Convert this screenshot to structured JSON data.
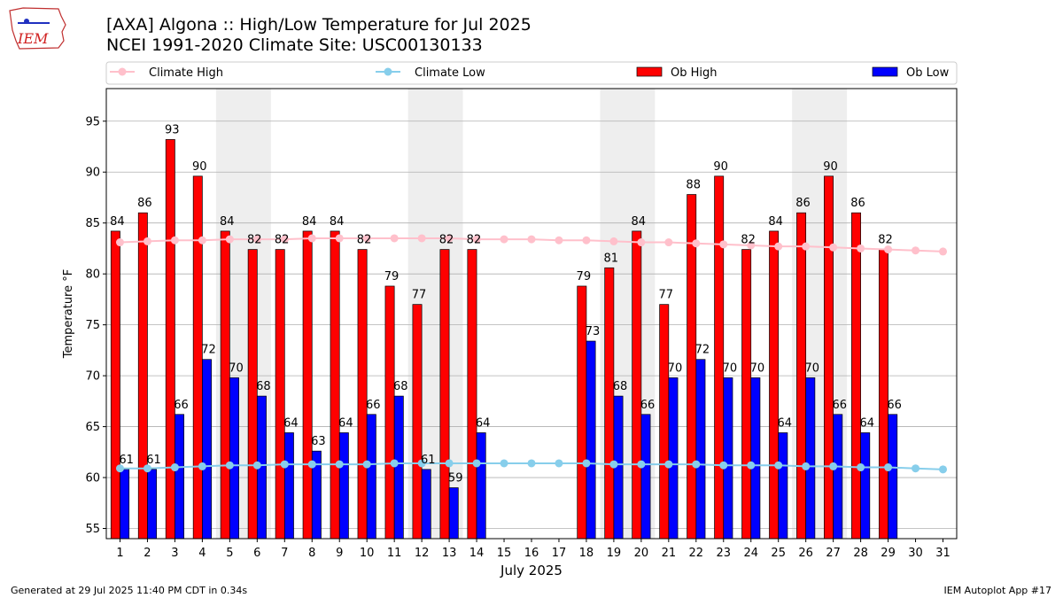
{
  "header": {
    "title_line1": "[AXA] Algona :: High/Low Temperature for Jul 2025",
    "title_line2": "NCEI 1991-2020 Climate Site: USC00130133",
    "logo_text": "IEM"
  },
  "footer": {
    "left": "Generated at 29 Jul 2025 11:40 PM CDT in 0.34s",
    "right": "IEM Autoplot App #17"
  },
  "colors": {
    "ob_high": "#ff0000",
    "ob_low": "#0000ff",
    "climate_high": "#ffc0cb",
    "climate_low": "#87ceeb",
    "weekend_shade": "#eeeeee",
    "grid": "#b0b0b0"
  },
  "chart_data": {
    "type": "bar",
    "title": "[AXA] Algona :: High/Low Temperature for Jul 2025",
    "subtitle": "NCEI 1991-2020 Climate Site: USC00130133",
    "xlabel": "July 2025",
    "ylabel": "Temperature °F",
    "ylim": [
      54,
      98.2
    ],
    "yticks": [
      55,
      60,
      65,
      70,
      75,
      80,
      85,
      90,
      95
    ],
    "xlim": [
      0.5,
      31.5
    ],
    "grid": "horizontal",
    "legend_position": "top",
    "categories": [
      "1",
      "2",
      "3",
      "4",
      "5",
      "6",
      "7",
      "8",
      "9",
      "10",
      "11",
      "12",
      "13",
      "14",
      "15",
      "16",
      "17",
      "18",
      "19",
      "20",
      "21",
      "22",
      "23",
      "24",
      "25",
      "26",
      "27",
      "28",
      "29",
      "30",
      "31"
    ],
    "weekend_spans": [
      [
        5,
        6
      ],
      [
        12,
        13
      ],
      [
        19,
        20
      ],
      [
        26,
        27
      ]
    ],
    "series": [
      {
        "name": "Ob High",
        "kind": "bar",
        "values": [
          84,
          86,
          93,
          90,
          84,
          82,
          82,
          84,
          84,
          82,
          79,
          77,
          82,
          82,
          null,
          null,
          null,
          79,
          81,
          84,
          77,
          88,
          90,
          82,
          84,
          86,
          90,
          86,
          82,
          null,
          null
        ],
        "labels": [
          "84",
          "86",
          "93",
          "90",
          "84",
          "82",
          "82",
          "84",
          "84",
          "82",
          "79",
          "77",
          "82",
          "82",
          null,
          null,
          null,
          "79",
          "81",
          "84",
          "77",
          "88",
          "90",
          "82",
          "84",
          "86",
          "90",
          "86",
          "82",
          null,
          null
        ],
        "bar_values": [
          84.2,
          86,
          93.2,
          89.6,
          84.2,
          82.4,
          82.4,
          84.2,
          84.2,
          82.4,
          78.8,
          77,
          82.4,
          82.4,
          null,
          null,
          null,
          78.8,
          80.6,
          84.2,
          77,
          87.8,
          89.6,
          82.4,
          84.2,
          86,
          89.6,
          86,
          82.4,
          null,
          null
        ]
      },
      {
        "name": "Ob Low",
        "kind": "bar",
        "values": [
          61,
          61,
          66,
          72,
          70,
          68,
          64,
          63,
          64,
          66,
          68,
          61,
          59,
          64,
          null,
          null,
          null,
          73,
          68,
          66,
          70,
          72,
          70,
          70,
          64,
          70,
          66,
          64,
          66,
          null,
          null
        ],
        "labels": [
          "61",
          "61",
          "66",
          "72",
          "70",
          "68",
          "64",
          "63",
          "64",
          "66",
          "68",
          "61",
          "59",
          "64",
          null,
          null,
          null,
          "73",
          "68",
          "66",
          "70",
          "72",
          "70",
          "70",
          "64",
          "70",
          "66",
          "64",
          "66",
          null,
          null
        ],
        "bar_values": [
          60.8,
          60.8,
          66.2,
          71.6,
          69.8,
          68,
          64.4,
          62.6,
          64.4,
          66.2,
          68,
          60.8,
          59,
          64.4,
          null,
          null,
          null,
          73.4,
          68,
          66.2,
          69.8,
          71.6,
          69.8,
          69.8,
          64.4,
          69.8,
          66.2,
          64.4,
          66.2,
          null,
          null
        ]
      },
      {
        "name": "Climate High",
        "kind": "line",
        "values": [
          83.1,
          83.2,
          83.3,
          83.3,
          83.4,
          83.4,
          83.4,
          83.5,
          83.5,
          83.5,
          83.5,
          83.5,
          83.5,
          83.4,
          83.4,
          83.4,
          83.3,
          83.3,
          83.2,
          83.1,
          83.1,
          83,
          82.9,
          82.8,
          82.7,
          82.7,
          82.6,
          82.5,
          82.4,
          82.3,
          82.2
        ]
      },
      {
        "name": "Climate Low",
        "kind": "line",
        "values": [
          60.9,
          60.9,
          61,
          61.1,
          61.2,
          61.2,
          61.3,
          61.3,
          61.3,
          61.3,
          61.4,
          61.4,
          61.4,
          61.4,
          61.4,
          61.4,
          61.4,
          61.4,
          61.3,
          61.3,
          61.3,
          61.3,
          61.2,
          61.2,
          61.2,
          61.1,
          61.1,
          61,
          61,
          60.9,
          60.8
        ]
      }
    ]
  }
}
